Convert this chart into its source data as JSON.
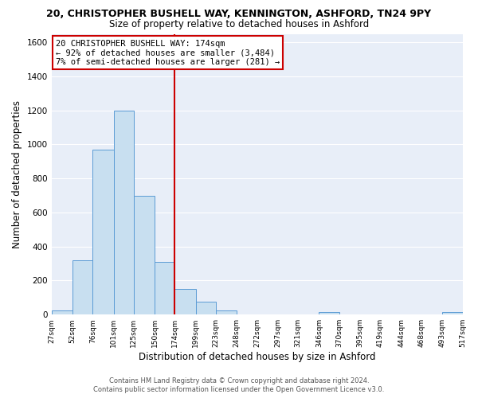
{
  "title": "20, CHRISTOPHER BUSHELL WAY, KENNINGTON, ASHFORD, TN24 9PY",
  "subtitle": "Size of property relative to detached houses in Ashford",
  "xlabel": "Distribution of detached houses by size in Ashford",
  "ylabel": "Number of detached properties",
  "bar_color": "#c8dff0",
  "bar_edge_color": "#5b9bd5",
  "bg_color": "#e8eef8",
  "grid_color": "#ffffff",
  "vline_x": 174,
  "vline_color": "#cc0000",
  "bin_edges": [
    27,
    52,
    76,
    101,
    125,
    150,
    174,
    199,
    223,
    248,
    272,
    297,
    321,
    346,
    370,
    395,
    419,
    444,
    468,
    493,
    517
  ],
  "bin_heights": [
    25,
    320,
    970,
    1200,
    700,
    310,
    150,
    75,
    25,
    0,
    0,
    0,
    0,
    15,
    0,
    0,
    0,
    0,
    0,
    15
  ],
  "tick_labels": [
    "27sqm",
    "52sqm",
    "76sqm",
    "101sqm",
    "125sqm",
    "150sqm",
    "174sqm",
    "199sqm",
    "223sqm",
    "248sqm",
    "272sqm",
    "297sqm",
    "321sqm",
    "346sqm",
    "370sqm",
    "395sqm",
    "419sqm",
    "444sqm",
    "468sqm",
    "493sqm",
    "517sqm"
  ],
  "annotation_title": "20 CHRISTOPHER BUSHELL WAY: 174sqm",
  "annotation_line1": "← 92% of detached houses are smaller (3,484)",
  "annotation_line2": "7% of semi-detached houses are larger (281) →",
  "annotation_box_color": "#cc0000",
  "footer1": "Contains HM Land Registry data © Crown copyright and database right 2024.",
  "footer2": "Contains public sector information licensed under the Open Government Licence v3.0.",
  "ylim": [
    0,
    1650
  ],
  "figsize": [
    6.0,
    5.0
  ],
  "dpi": 100
}
